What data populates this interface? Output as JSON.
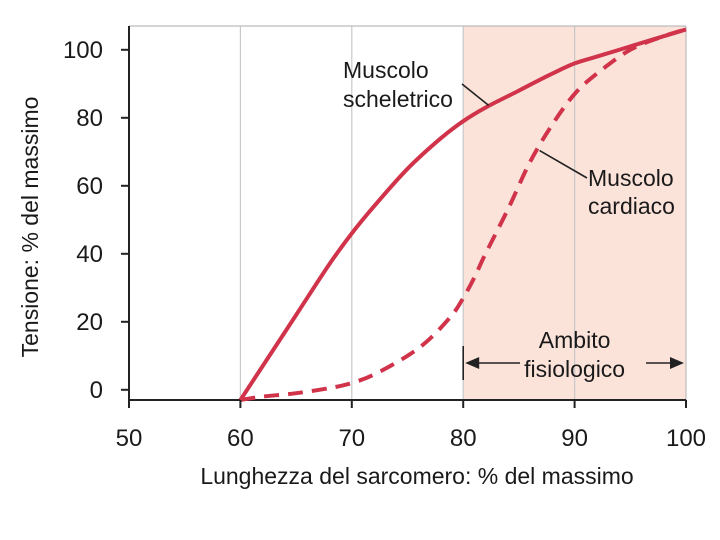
{
  "chart_data": {
    "type": "line",
    "xlabel": "Lunghezza del sarcomero: % del massimo",
    "ylabel": "Tensione: % del massimo",
    "xlim": [
      50,
      100
    ],
    "ylim": [
      -3,
      107
    ],
    "xticks": [
      50,
      60,
      70,
      80,
      90,
      100
    ],
    "yticks": [
      0,
      20,
      40,
      60,
      80,
      100
    ],
    "grid": "vertical",
    "series_color": "#d0334a",
    "shade_color": "#fbe3da",
    "series": [
      {
        "name": "Muscolo scheletrico",
        "style": "solid",
        "x": [
          60,
          62,
          65,
          68,
          70,
          72,
          75,
          78,
          80,
          82,
          85,
          88,
          90,
          92,
          95,
          98,
          100
        ],
        "y": [
          -3,
          7,
          22,
          37,
          46,
          54,
          65,
          74,
          79,
          83,
          88,
          93,
          96,
          98,
          101,
          104,
          106
        ]
      },
      {
        "name": "Muscolo cardiaco",
        "style": "dashed",
        "x": [
          60,
          62,
          65,
          68,
          70,
          72,
          75,
          77,
          79,
          80,
          81,
          82,
          84,
          86,
          88,
          90,
          92,
          95,
          98,
          100
        ],
        "y": [
          -3,
          -2,
          -1,
          0.5,
          2,
          4.5,
          10,
          15,
          22,
          27,
          33,
          40,
          53,
          67,
          78,
          87,
          93,
          100,
          104,
          106
        ]
      }
    ],
    "annotations": [
      {
        "id": "skeletal",
        "lines": [
          "Muscolo",
          "scheletrico"
        ],
        "x": 77,
        "y": 91,
        "arrow_to": [
          83,
          86
        ]
      },
      {
        "id": "cardiac",
        "lines": [
          "Muscolo",
          "cardiaco"
        ],
        "x": 91.2,
        "y": 62,
        "arrow_to": [
          86.5,
          68
        ]
      },
      {
        "id": "range",
        "lines": [
          "Ambito",
          "fisiologico"
        ],
        "x": 90,
        "y": 10,
        "span": [
          80,
          100
        ]
      }
    ],
    "shaded_range": [
      80,
      100
    ]
  }
}
